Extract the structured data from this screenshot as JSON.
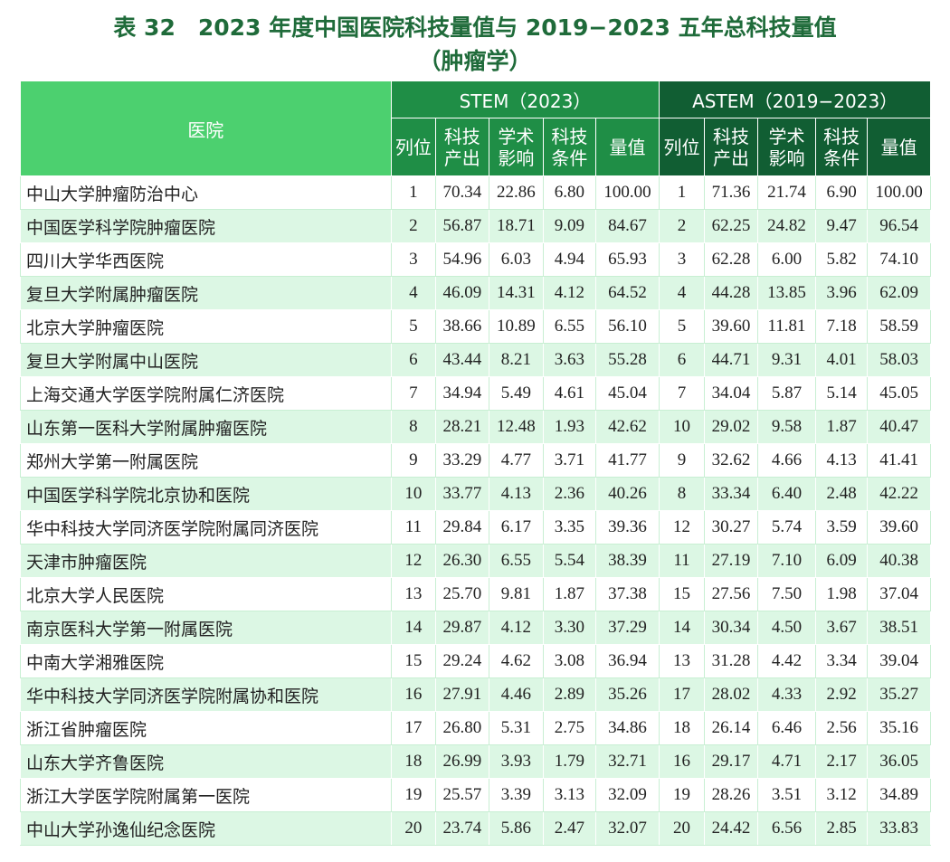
{
  "title_line1": "表 32　2023 年度中国医院科技量值与 2019−2023 五年总科技量值",
  "title_line2": "（肿瘤学）",
  "header": {
    "hospital": "医院",
    "stem_group": "STEM（2023）",
    "astem_group": "ASTEM（2019−2023）",
    "sub": [
      "列位",
      "科技产出",
      "学术影响",
      "科技条件",
      "量值"
    ]
  },
  "rows": [
    [
      "中山大学肿瘤防治中心",
      "1",
      "70.34",
      "22.86",
      "6.80",
      "100.00",
      "1",
      "71.36",
      "21.74",
      "6.90",
      "100.00"
    ],
    [
      "中国医学科学院肿瘤医院",
      "2",
      "56.87",
      "18.71",
      "9.09",
      "84.67",
      "2",
      "62.25",
      "24.82",
      "9.47",
      "96.54"
    ],
    [
      "四川大学华西医院",
      "3",
      "54.96",
      "6.03",
      "4.94",
      "65.93",
      "3",
      "62.28",
      "6.00",
      "5.82",
      "74.10"
    ],
    [
      "复旦大学附属肿瘤医院",
      "4",
      "46.09",
      "14.31",
      "4.12",
      "64.52",
      "4",
      "44.28",
      "13.85",
      "3.96",
      "62.09"
    ],
    [
      "北京大学肿瘤医院",
      "5",
      "38.66",
      "10.89",
      "6.55",
      "56.10",
      "5",
      "39.60",
      "11.81",
      "7.18",
      "58.59"
    ],
    [
      "复旦大学附属中山医院",
      "6",
      "43.44",
      "8.21",
      "3.63",
      "55.28",
      "6",
      "44.71",
      "9.31",
      "4.01",
      "58.03"
    ],
    [
      "上海交通大学医学院附属仁济医院",
      "7",
      "34.94",
      "5.49",
      "4.61",
      "45.04",
      "7",
      "34.04",
      "5.87",
      "5.14",
      "45.05"
    ],
    [
      "山东第一医科大学附属肿瘤医院",
      "8",
      "28.21",
      "12.48",
      "1.93",
      "42.62",
      "10",
      "29.02",
      "9.58",
      "1.87",
      "40.47"
    ],
    [
      "郑州大学第一附属医院",
      "9",
      "33.29",
      "4.77",
      "3.71",
      "41.77",
      "9",
      "32.62",
      "4.66",
      "4.13",
      "41.41"
    ],
    [
      "中国医学科学院北京协和医院",
      "10",
      "33.77",
      "4.13",
      "2.36",
      "40.26",
      "8",
      "33.34",
      "6.40",
      "2.48",
      "42.22"
    ],
    [
      "华中科技大学同济医学院附属同济医院",
      "11",
      "29.84",
      "6.17",
      "3.35",
      "39.36",
      "12",
      "30.27",
      "5.74",
      "3.59",
      "39.60"
    ],
    [
      "天津市肿瘤医院",
      "12",
      "26.30",
      "6.55",
      "5.54",
      "38.39",
      "11",
      "27.19",
      "7.10",
      "6.09",
      "40.38"
    ],
    [
      "北京大学人民医院",
      "13",
      "25.70",
      "9.81",
      "1.87",
      "37.38",
      "15",
      "27.56",
      "7.50",
      "1.98",
      "37.04"
    ],
    [
      "南京医科大学第一附属医院",
      "14",
      "29.87",
      "4.12",
      "3.30",
      "37.29",
      "14",
      "30.34",
      "4.50",
      "3.67",
      "38.51"
    ],
    [
      "中南大学湘雅医院",
      "15",
      "29.24",
      "4.62",
      "3.08",
      "36.94",
      "13",
      "31.28",
      "4.42",
      "3.34",
      "39.04"
    ],
    [
      "华中科技大学同济医学院附属协和医院",
      "16",
      "27.91",
      "4.46",
      "2.89",
      "35.26",
      "17",
      "28.02",
      "4.33",
      "2.92",
      "35.27"
    ],
    [
      "浙江省肿瘤医院",
      "17",
      "26.80",
      "5.31",
      "2.75",
      "34.86",
      "18",
      "26.14",
      "6.46",
      "2.56",
      "35.16"
    ],
    [
      "山东大学齐鲁医院",
      "18",
      "26.99",
      "3.93",
      "1.79",
      "32.71",
      "16",
      "29.17",
      "4.71",
      "2.17",
      "36.05"
    ],
    [
      "浙江大学医学院附属第一医院",
      "19",
      "25.57",
      "3.39",
      "3.13",
      "32.09",
      "19",
      "28.26",
      "3.51",
      "3.12",
      "34.89"
    ],
    [
      "中山大学孙逸仙纪念医院",
      "20",
      "23.74",
      "5.86",
      "2.47",
      "32.07",
      "20",
      "24.42",
      "6.56",
      "2.85",
      "33.83"
    ]
  ]
}
